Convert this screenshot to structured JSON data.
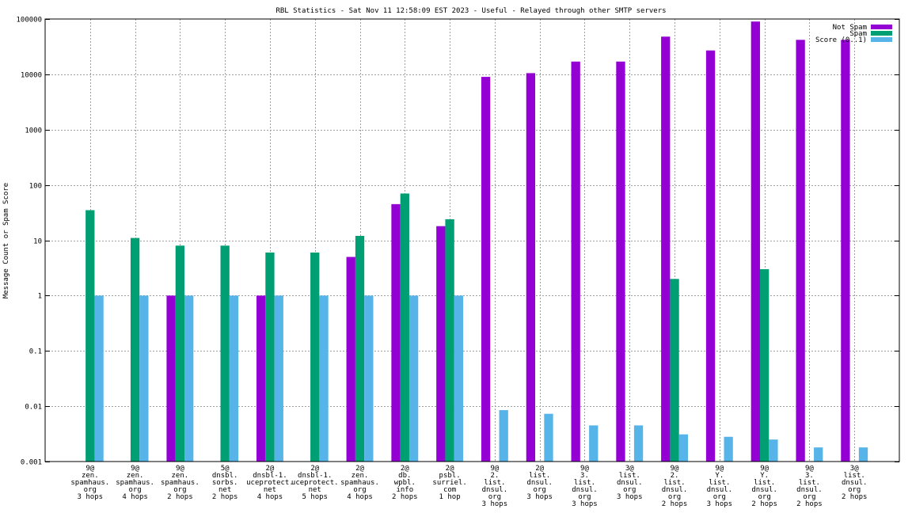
{
  "chart_data": {
    "type": "bar",
    "title": "RBL Statistics - Sat Nov 11 12:58:09 EST 2023 - Useful - Relayed through other SMTP servers",
    "xlabel": "",
    "ylabel": "Message Count or Spam Score",
    "yscale": "log",
    "ylim": [
      0.001,
      100000
    ],
    "yticks": [
      "0.001",
      "0.01",
      "0.1",
      "1",
      "10",
      "100",
      "1000",
      "10000",
      "100000"
    ],
    "grid": true,
    "legend_position": "top-right",
    "categories": [
      [
        "9@",
        "zen.",
        "spamhaus.",
        "org",
        "3 hops"
      ],
      [
        "9@",
        "zen.",
        "spamhaus.",
        "org",
        "4 hops"
      ],
      [
        "9@",
        "zen.",
        "spamhaus.",
        "org",
        "2 hops"
      ],
      [
        "5@",
        "dnsbl.",
        "sorbs.",
        "net",
        "2 hops"
      ],
      [
        "2@",
        "dnsbl-1.",
        "uceprotect.",
        "net",
        "4 hops"
      ],
      [
        "2@",
        "dnsbl-1.",
        "uceprotect.",
        "net",
        "5 hops"
      ],
      [
        "2@",
        "zen.",
        "spamhaus.",
        "org",
        "4 hops"
      ],
      [
        "2@",
        "db.",
        "wpbl.",
        "info",
        "2 hops"
      ],
      [
        "2@",
        "psbl.",
        "surriel.",
        "com",
        "1 hop"
      ],
      [
        "9@",
        "2.",
        "list.",
        "dnsul.",
        "org",
        "3 hops"
      ],
      [
        "2@",
        "list.",
        "dnsul.",
        "org",
        "3 hops"
      ],
      [
        "9@",
        "3.",
        "list.",
        "dnsul.",
        "org",
        "3 hops"
      ],
      [
        "3@",
        "list.",
        "dnsul.",
        "org",
        "3 hops"
      ],
      [
        "9@",
        "2.",
        "list.",
        "dnsul.",
        "org",
        "2 hops"
      ],
      [
        "9@",
        "Y.",
        "list.",
        "dnsul.",
        "org",
        "3 hops"
      ],
      [
        "9@",
        "Y.",
        "list.",
        "dnsul.",
        "org",
        "2 hops"
      ],
      [
        "9@",
        "3.",
        "list.",
        "dnsul.",
        "org",
        "2 hops"
      ],
      [
        "3@",
        "list.",
        "dnsul.",
        "org",
        "2 hops"
      ]
    ],
    "series": [
      {
        "name": "Not Spam",
        "color": "#9400d3",
        "values": [
          0,
          0,
          1,
          0,
          1,
          0,
          5,
          45,
          18,
          9000,
          10500,
          17000,
          17000,
          48000,
          27000,
          90000,
          42000,
          42000
        ]
      },
      {
        "name": "Spam",
        "color": "#009e73",
        "values": [
          35,
          11,
          8,
          8,
          6,
          6,
          12,
          70,
          24,
          0,
          0,
          0,
          0,
          2,
          0,
          3,
          0,
          0
        ]
      },
      {
        "name": "Score (0..1)",
        "color": "#56b4e9",
        "values": [
          1,
          1,
          1,
          1,
          1,
          1,
          1,
          1,
          1,
          0.0085,
          0.0073,
          0.0045,
          0.0045,
          0.0031,
          0.0028,
          0.0025,
          0.0018,
          0.0018
        ]
      }
    ]
  }
}
